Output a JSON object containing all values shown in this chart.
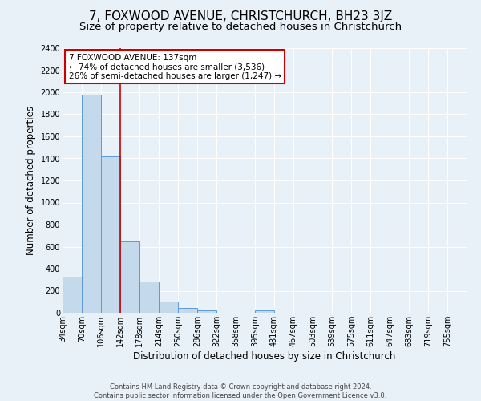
{
  "title": "7, FOXWOOD AVENUE, CHRISTCHURCH, BH23 3JZ",
  "subtitle": "Size of property relative to detached houses in Christchurch",
  "xlabel": "Distribution of detached houses by size in Christchurch",
  "ylabel": "Number of detached properties",
  "bin_labels": [
    "34sqm",
    "70sqm",
    "106sqm",
    "142sqm",
    "178sqm",
    "214sqm",
    "250sqm",
    "286sqm",
    "322sqm",
    "358sqm",
    "395sqm",
    "431sqm",
    "467sqm",
    "503sqm",
    "539sqm",
    "575sqm",
    "611sqm",
    "647sqm",
    "683sqm",
    "719sqm",
    "755sqm"
  ],
  "bin_counts": [
    330,
    1980,
    1415,
    650,
    285,
    105,
    45,
    25,
    0,
    0,
    20,
    0,
    0,
    0,
    0,
    0,
    0,
    0,
    0,
    0,
    0
  ],
  "bar_color": "#c5d9ed",
  "bar_edge_color": "#5b9bd5",
  "red_line_x": 3.0,
  "annotation_line1": "7 FOXWOOD AVENUE: 137sqm",
  "annotation_line2": "← 74% of detached houses are smaller (3,536)",
  "annotation_line3": "26% of semi-detached houses are larger (1,247) →",
  "annotation_box_facecolor": "#ffffff",
  "annotation_box_edgecolor": "#cc0000",
  "ylim": [
    0,
    2400
  ],
  "yticks": [
    0,
    200,
    400,
    600,
    800,
    1000,
    1200,
    1400,
    1600,
    1800,
    2000,
    2200,
    2400
  ],
  "footer1": "Contains HM Land Registry data © Crown copyright and database right 2024.",
  "footer2": "Contains public sector information licensed under the Open Government Licence v3.0.",
  "background_color": "#e8f0f8",
  "plot_background": "#e8f0f8",
  "grid_color": "#ffffff",
  "title_fontsize": 11,
  "subtitle_fontsize": 9.5,
  "axis_label_fontsize": 8.5,
  "tick_fontsize": 7,
  "annotation_fontsize": 7.5,
  "footer_fontsize": 6
}
